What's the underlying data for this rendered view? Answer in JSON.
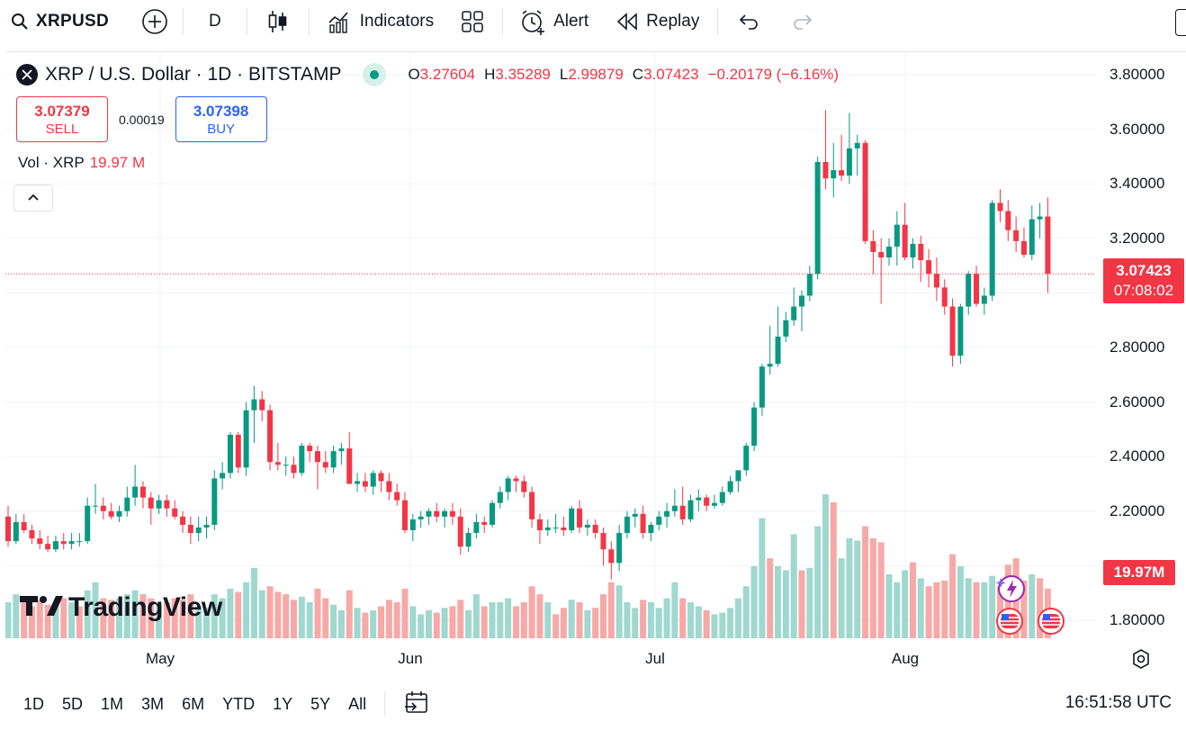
{
  "toolbar": {
    "symbol": "XRPUSD",
    "interval": "D",
    "indicators_label": "Indicators",
    "alert_label": "Alert",
    "replay_label": "Replay"
  },
  "legend": {
    "title": "XRP / U.S. Dollar · 1D · BITSTAMP",
    "open_key": "O",
    "open": "3.27604",
    "high_key": "H",
    "high": "3.35289",
    "low_key": "L",
    "low": "2.99879",
    "close_key": "C",
    "close": "3.07423",
    "change": "−0.20179 (−6.16%)"
  },
  "trade": {
    "sell_price": "3.07379",
    "sell_label": "SELL",
    "spread": "0.00019",
    "buy_price": "3.07398",
    "buy_label": "BUY"
  },
  "volume_legend": {
    "label": "Vol · XRP",
    "value": "19.97 M"
  },
  "price_scale": {
    "labels": [
      "3.80000",
      "3.60000",
      "3.40000",
      "3.20000",
      "2.80000",
      "2.60000",
      "2.40000",
      "2.20000",
      "1.80000"
    ],
    "last_price": "3.07423",
    "countdown": "07:08:02",
    "volume_tag": "19.97M"
  },
  "time_scale": {
    "labels": [
      "May",
      "Jun",
      "Jul",
      "Aug"
    ]
  },
  "watermark": "TradingView",
  "bottom": {
    "ranges": [
      "1D",
      "5D",
      "1M",
      "3M",
      "6M",
      "YTD",
      "1Y",
      "5Y",
      "All"
    ],
    "clock": "16:51:58 UTC"
  },
  "colors": {
    "up": "#089981",
    "down": "#f23645",
    "up_vol": "#9fd8cf",
    "down_vol": "#f7a9a7"
  },
  "chart_data": {
    "type": "candlestick",
    "ylim": [
      1.7,
      3.85
    ],
    "candles": [
      [
        2.18,
        2.22,
        2.07,
        2.09
      ],
      [
        2.09,
        2.19,
        2.08,
        2.16
      ],
      [
        2.16,
        2.19,
        2.12,
        2.13
      ],
      [
        2.13,
        2.15,
        2.08,
        2.1
      ],
      [
        2.1,
        2.13,
        2.06,
        2.08
      ],
      [
        2.08,
        2.11,
        2.05,
        2.06
      ],
      [
        2.06,
        2.11,
        2.05,
        2.09
      ],
      [
        2.09,
        2.12,
        2.06,
        2.08
      ],
      [
        2.08,
        2.12,
        2.06,
        2.09
      ],
      [
        2.09,
        2.12,
        2.07,
        2.09
      ],
      [
        2.09,
        2.25,
        2.08,
        2.22
      ],
      [
        2.22,
        2.3,
        2.19,
        2.22
      ],
      [
        2.22,
        2.25,
        2.17,
        2.2
      ],
      [
        2.2,
        2.23,
        2.17,
        2.18
      ],
      [
        2.18,
        2.22,
        2.16,
        2.2
      ],
      [
        2.2,
        2.29,
        2.18,
        2.25
      ],
      [
        2.25,
        2.37,
        2.22,
        2.29
      ],
      [
        2.29,
        2.31,
        2.21,
        2.25
      ],
      [
        2.25,
        2.27,
        2.15,
        2.21
      ],
      [
        2.21,
        2.26,
        2.19,
        2.24
      ],
      [
        2.24,
        2.26,
        2.18,
        2.21
      ],
      [
        2.21,
        2.24,
        2.17,
        2.18
      ],
      [
        2.18,
        2.2,
        2.12,
        2.15
      ],
      [
        2.15,
        2.18,
        2.08,
        2.12
      ],
      [
        2.12,
        2.18,
        2.09,
        2.14
      ],
      [
        2.14,
        2.18,
        2.1,
        2.15
      ],
      [
        2.15,
        2.35,
        2.13,
        2.32
      ],
      [
        2.32,
        2.38,
        2.28,
        2.34
      ],
      [
        2.34,
        2.49,
        2.32,
        2.48
      ],
      [
        2.48,
        2.49,
        2.34,
        2.36
      ],
      [
        2.36,
        2.6,
        2.33,
        2.57
      ],
      [
        2.57,
        2.66,
        2.45,
        2.61
      ],
      [
        2.61,
        2.64,
        2.53,
        2.57
      ],
      [
        2.57,
        2.59,
        2.35,
        2.38
      ],
      [
        2.38,
        2.45,
        2.35,
        2.37
      ],
      [
        2.37,
        2.4,
        2.33,
        2.37
      ],
      [
        2.37,
        2.4,
        2.32,
        2.34
      ],
      [
        2.34,
        2.45,
        2.33,
        2.44
      ],
      [
        2.44,
        2.45,
        2.38,
        2.42
      ],
      [
        2.42,
        2.44,
        2.28,
        2.38
      ],
      [
        2.38,
        2.42,
        2.34,
        2.36
      ],
      [
        2.36,
        2.44,
        2.34,
        2.42
      ],
      [
        2.42,
        2.45,
        2.37,
        2.43
      ],
      [
        2.43,
        2.49,
        2.32,
        2.3
      ],
      [
        2.3,
        2.34,
        2.27,
        2.31
      ],
      [
        2.31,
        2.34,
        2.27,
        2.29
      ],
      [
        2.29,
        2.35,
        2.26,
        2.34
      ],
      [
        2.34,
        2.35,
        2.27,
        2.31
      ],
      [
        2.31,
        2.34,
        2.24,
        2.27
      ],
      [
        2.27,
        2.3,
        2.22,
        2.24
      ],
      [
        2.24,
        2.27,
        2.12,
        2.13
      ],
      [
        2.13,
        2.19,
        2.09,
        2.17
      ],
      [
        2.17,
        2.2,
        2.14,
        2.18
      ],
      [
        2.18,
        2.21,
        2.15,
        2.2
      ],
      [
        2.2,
        2.23,
        2.16,
        2.18
      ],
      [
        2.18,
        2.21,
        2.14,
        2.2
      ],
      [
        2.2,
        2.23,
        2.15,
        2.18
      ],
      [
        2.18,
        2.21,
        2.04,
        2.07
      ],
      [
        2.07,
        2.14,
        2.05,
        2.12
      ],
      [
        2.12,
        2.19,
        2.1,
        2.16
      ],
      [
        2.16,
        2.18,
        2.12,
        2.15
      ],
      [
        2.15,
        2.24,
        2.14,
        2.23
      ],
      [
        2.23,
        2.29,
        2.21,
        2.27
      ],
      [
        2.27,
        2.33,
        2.24,
        2.32
      ],
      [
        2.32,
        2.33,
        2.27,
        2.31
      ],
      [
        2.31,
        2.33,
        2.25,
        2.27
      ],
      [
        2.27,
        2.29,
        2.14,
        2.17
      ],
      [
        2.17,
        2.19,
        2.08,
        2.13
      ],
      [
        2.13,
        2.17,
        2.11,
        2.14
      ],
      [
        2.14,
        2.19,
        2.12,
        2.14
      ],
      [
        2.14,
        2.18,
        2.11,
        2.13
      ],
      [
        2.13,
        2.22,
        2.12,
        2.21
      ],
      [
        2.21,
        2.24,
        2.12,
        2.14
      ],
      [
        2.14,
        2.17,
        2.11,
        2.15
      ],
      [
        2.15,
        2.17,
        2.1,
        2.12
      ],
      [
        2.12,
        2.14,
        2.0,
        2.06
      ],
      [
        2.06,
        2.09,
        1.95,
        2.01
      ],
      [
        2.01,
        2.15,
        1.98,
        2.12
      ],
      [
        2.12,
        2.2,
        2.1,
        2.18
      ],
      [
        2.18,
        2.21,
        2.14,
        2.19
      ],
      [
        2.19,
        2.22,
        2.1,
        2.12
      ],
      [
        2.12,
        2.16,
        2.09,
        2.15
      ],
      [
        2.15,
        2.2,
        2.13,
        2.18
      ],
      [
        2.18,
        2.23,
        2.14,
        2.2
      ],
      [
        2.2,
        2.28,
        2.18,
        2.22
      ],
      [
        2.22,
        2.29,
        2.15,
        2.17
      ],
      [
        2.17,
        2.26,
        2.16,
        2.24
      ],
      [
        2.24,
        2.28,
        2.2,
        2.25
      ],
      [
        2.25,
        2.26,
        2.2,
        2.22
      ],
      [
        2.22,
        2.26,
        2.21,
        2.23
      ],
      [
        2.23,
        2.29,
        2.22,
        2.27
      ],
      [
        2.27,
        2.33,
        2.26,
        2.31
      ],
      [
        2.31,
        2.35,
        2.27,
        2.35
      ],
      [
        2.35,
        2.45,
        2.33,
        2.44
      ],
      [
        2.44,
        2.6,
        2.42,
        2.58
      ],
      [
        2.58,
        2.74,
        2.55,
        2.73
      ],
      [
        2.73,
        2.88,
        2.7,
        2.74
      ],
      [
        2.74,
        2.95,
        2.73,
        2.84
      ],
      [
        2.84,
        2.93,
        2.82,
        2.9
      ],
      [
        2.9,
        3.02,
        2.88,
        2.95
      ],
      [
        2.95,
        3.01,
        2.86,
        2.99
      ],
      [
        2.99,
        3.1,
        2.97,
        3.07
      ],
      [
        3.07,
        3.5,
        3.05,
        3.48
      ],
      [
        3.48,
        3.67,
        3.38,
        3.42
      ],
      [
        3.42,
        3.55,
        3.35,
        3.45
      ],
      [
        3.45,
        3.58,
        3.41,
        3.43
      ],
      [
        3.43,
        3.66,
        3.4,
        3.53
      ],
      [
        3.53,
        3.58,
        3.43,
        3.55
      ],
      [
        3.55,
        3.56,
        3.18,
        3.19
      ],
      [
        3.19,
        3.23,
        3.07,
        3.15
      ],
      [
        3.15,
        3.2,
        2.96,
        3.13
      ],
      [
        3.13,
        3.2,
        3.1,
        3.17
      ],
      [
        3.17,
        3.3,
        3.1,
        3.25
      ],
      [
        3.25,
        3.33,
        3.12,
        3.13
      ],
      [
        3.13,
        3.2,
        3.09,
        3.18
      ],
      [
        3.18,
        3.21,
        3.04,
        3.12
      ],
      [
        3.12,
        3.16,
        3.02,
        3.07
      ],
      [
        3.07,
        3.13,
        2.97,
        3.02
      ],
      [
        3.02,
        3.05,
        2.92,
        2.95
      ],
      [
        2.95,
        2.98,
        2.73,
        2.77
      ],
      [
        2.77,
        2.96,
        2.74,
        2.95
      ],
      [
        2.95,
        3.08,
        2.92,
        3.07
      ],
      [
        3.07,
        3.1,
        2.95,
        2.96
      ],
      [
        2.96,
        3.02,
        2.92,
        2.99
      ],
      [
        2.99,
        3.34,
        2.97,
        3.33
      ],
      [
        3.33,
        3.38,
        3.26,
        3.3
      ],
      [
        3.3,
        3.34,
        3.19,
        3.23
      ],
      [
        3.23,
        3.28,
        3.15,
        3.19
      ],
      [
        3.19,
        3.24,
        3.13,
        3.14
      ],
      [
        3.14,
        3.32,
        3.12,
        3.27
      ],
      [
        3.27,
        3.33,
        3.2,
        3.28
      ],
      [
        3.28,
        3.35,
        3.0,
        3.07
      ]
    ],
    "volume": [
      [
        0.45,
        1
      ],
      [
        0.55,
        1
      ],
      [
        0.5,
        0
      ],
      [
        0.4,
        0
      ],
      [
        0.48,
        0
      ],
      [
        0.42,
        0
      ],
      [
        0.44,
        1
      ],
      [
        0.5,
        0
      ],
      [
        0.45,
        1
      ],
      [
        0.4,
        0
      ],
      [
        0.6,
        1
      ],
      [
        0.7,
        1
      ],
      [
        0.5,
        0
      ],
      [
        0.48,
        0
      ],
      [
        0.5,
        1
      ],
      [
        0.55,
        1
      ],
      [
        0.6,
        1
      ],
      [
        0.55,
        0
      ],
      [
        0.5,
        0
      ],
      [
        0.42,
        1
      ],
      [
        0.45,
        0
      ],
      [
        0.5,
        0
      ],
      [
        0.48,
        0
      ],
      [
        0.55,
        0
      ],
      [
        0.4,
        1
      ],
      [
        0.38,
        1
      ],
      [
        0.55,
        1
      ],
      [
        0.5,
        1
      ],
      [
        0.62,
        1
      ],
      [
        0.58,
        0
      ],
      [
        0.7,
        1
      ],
      [
        0.88,
        1
      ],
      [
        0.6,
        1
      ],
      [
        0.65,
        0
      ],
      [
        0.58,
        0
      ],
      [
        0.55,
        0
      ],
      [
        0.48,
        0
      ],
      [
        0.52,
        1
      ],
      [
        0.45,
        1
      ],
      [
        0.62,
        0
      ],
      [
        0.5,
        0
      ],
      [
        0.42,
        1
      ],
      [
        0.35,
        1
      ],
      [
        0.6,
        0
      ],
      [
        0.38,
        1
      ],
      [
        0.32,
        0
      ],
      [
        0.35,
        1
      ],
      [
        0.4,
        0
      ],
      [
        0.48,
        0
      ],
      [
        0.45,
        0
      ],
      [
        0.62,
        0
      ],
      [
        0.4,
        1
      ],
      [
        0.3,
        1
      ],
      [
        0.35,
        1
      ],
      [
        0.32,
        0
      ],
      [
        0.38,
        1
      ],
      [
        0.4,
        0
      ],
      [
        0.48,
        0
      ],
      [
        0.35,
        1
      ],
      [
        0.55,
        1
      ],
      [
        0.4,
        0
      ],
      [
        0.45,
        1
      ],
      [
        0.45,
        1
      ],
      [
        0.5,
        1
      ],
      [
        0.4,
        0
      ],
      [
        0.45,
        0
      ],
      [
        0.65,
        0
      ],
      [
        0.55,
        0
      ],
      [
        0.45,
        1
      ],
      [
        0.3,
        0
      ],
      [
        0.38,
        0
      ],
      [
        0.48,
        1
      ],
      [
        0.45,
        0
      ],
      [
        0.35,
        1
      ],
      [
        0.38,
        0
      ],
      [
        0.55,
        0
      ],
      [
        0.7,
        0
      ],
      [
        0.66,
        1
      ],
      [
        0.45,
        1
      ],
      [
        0.38,
        1
      ],
      [
        0.48,
        0
      ],
      [
        0.45,
        1
      ],
      [
        0.38,
        1
      ],
      [
        0.5,
        1
      ],
      [
        0.7,
        1
      ],
      [
        0.5,
        0
      ],
      [
        0.45,
        1
      ],
      [
        0.4,
        1
      ],
      [
        0.35,
        0
      ],
      [
        0.3,
        1
      ],
      [
        0.32,
        1
      ],
      [
        0.38,
        1
      ],
      [
        0.5,
        1
      ],
      [
        0.65,
        1
      ],
      [
        0.9,
        1
      ],
      [
        1.5,
        1
      ],
      [
        1.0,
        0
      ],
      [
        0.9,
        1
      ],
      [
        0.85,
        1
      ],
      [
        1.3,
        1
      ],
      [
        0.85,
        0
      ],
      [
        0.88,
        1
      ],
      [
        1.4,
        1
      ],
      [
        1.8,
        1
      ],
      [
        1.7,
        0
      ],
      [
        1.0,
        1
      ],
      [
        1.25,
        1
      ],
      [
        1.22,
        1
      ],
      [
        1.4,
        0
      ],
      [
        1.25,
        0
      ],
      [
        1.2,
        0
      ],
      [
        0.8,
        1
      ],
      [
        0.7,
        1
      ],
      [
        0.85,
        1
      ],
      [
        0.95,
        0
      ],
      [
        0.75,
        1
      ],
      [
        0.65,
        0
      ],
      [
        0.7,
        0
      ],
      [
        0.72,
        0
      ],
      [
        1.05,
        0
      ],
      [
        0.9,
        1
      ],
      [
        0.75,
        1
      ],
      [
        0.7,
        0
      ],
      [
        0.7,
        1
      ],
      [
        0.78,
        1
      ],
      [
        0.65,
        0
      ],
      [
        0.92,
        0
      ],
      [
        1.0,
        0
      ],
      [
        0.72,
        0
      ],
      [
        0.8,
        1
      ],
      [
        0.75,
        0
      ],
      [
        0.62,
        0
      ]
    ]
  }
}
